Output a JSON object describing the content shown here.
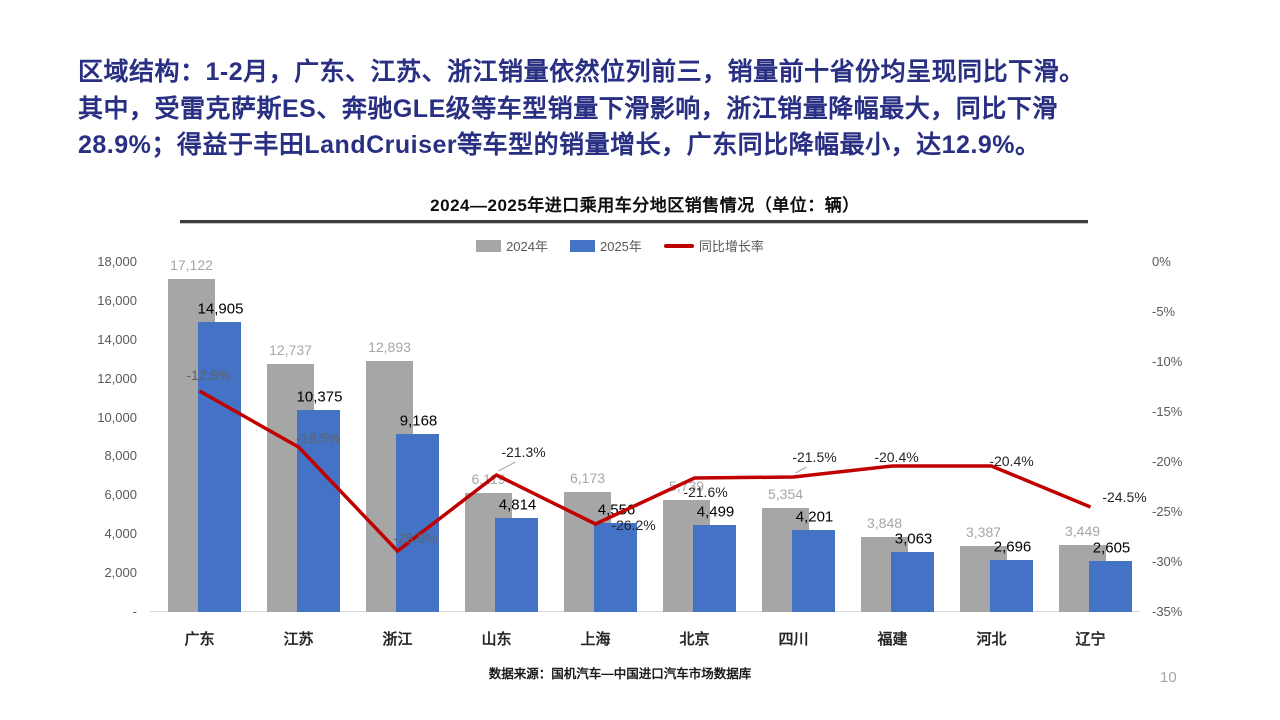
{
  "slide": {
    "headline_lines": [
      "区域结构：1-2月，广东、江苏、浙江销量依然位列前三，销量前十省份均呈现同比下滑。",
      "其中，受雷克萨斯ES、奔驰GLE级等车型销量下滑影响，浙江销量降幅最大，同比下滑",
      "28.9%；得益于丰田LandCruiser等车型的销量增长，广东同比降幅最小，达12.9%。"
    ],
    "headline_color": "#292f82",
    "source_note": "数据来源：国机汽车—中国进口汽车市场数据库",
    "page_number": "10"
  },
  "chart_data": {
    "type": "bar",
    "subtype": "grouped-bars-with-line",
    "title": "2024—2025年进口乘用车分地区销售情况（单位：辆）",
    "categories": [
      "广东",
      "江苏",
      "浙江",
      "山东",
      "上海",
      "北京",
      "四川",
      "福建",
      "河北",
      "辽宁"
    ],
    "series": [
      {
        "name": "2024年",
        "type": "bar",
        "color": "#a6a6a6",
        "values": [
          17122,
          12737,
          12893,
          6119,
          6173,
          5739,
          5354,
          3848,
          3387,
          3449
        ]
      },
      {
        "name": "2025年",
        "type": "bar",
        "color": "#4472c4",
        "values": [
          14905,
          10375,
          9168,
          4814,
          4556,
          4499,
          4201,
          3063,
          2696,
          2605
        ]
      },
      {
        "name": "同比增长率",
        "type": "line",
        "color": "#c00000",
        "values": [
          -12.9,
          -18.5,
          -28.9,
          -21.3,
          -26.2,
          -21.6,
          -21.5,
          -20.4,
          -20.4,
          -24.5
        ]
      }
    ],
    "left_axis": {
      "min": 0,
      "max": 18000,
      "ticks": [
        "18,000",
        "16,000",
        "14,000",
        "12,000",
        "10,000",
        "8,000",
        "6,000",
        "4,000",
        "2,000",
        "-"
      ]
    },
    "right_axis": {
      "min": -35,
      "max": 0,
      "ticks": [
        "0%",
        "-5%",
        "-10%",
        "-15%",
        "-20%",
        "-25%",
        "-30%",
        "-35%"
      ]
    },
    "legend_position": "top",
    "grid": false,
    "label_layout": {
      "pct_dx": [
        9,
        20,
        18,
        27,
        38,
        11,
        21,
        4,
        20,
        34
      ],
      "pct_dy": [
        -16,
        -9,
        -13,
        -23,
        1,
        14,
        -20,
        -9,
        -5,
        -10
      ],
      "leader_lines": [
        3,
        6
      ],
      "muted_pct_indices": [
        0,
        1,
        2
      ]
    }
  }
}
